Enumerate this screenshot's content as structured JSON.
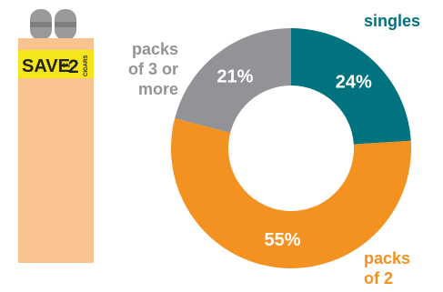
{
  "illustration": {
    "sticker_main": "SAVE",
    "sticker_on": "ON",
    "sticker_num": "2",
    "sticker_sub": "CIGARS",
    "sticker_color": "#f5e51b",
    "body_color": "#f9c38f"
  },
  "chart_data": {
    "type": "pie",
    "donut": true,
    "categories": [
      "singles",
      "packs of 2",
      "packs of 3 or more"
    ],
    "values": [
      24,
      55,
      21
    ],
    "value_labels": [
      "24%",
      "55%",
      "21%"
    ],
    "label_lines": [
      [
        "singles"
      ],
      [
        "packs",
        "of 2"
      ],
      [
        "packs",
        "of 3 or",
        "more"
      ]
    ],
    "colors": [
      "#00737f",
      "#f39121",
      "#929396"
    ],
    "start_angle_deg": 0,
    "direction": "clockwise"
  }
}
